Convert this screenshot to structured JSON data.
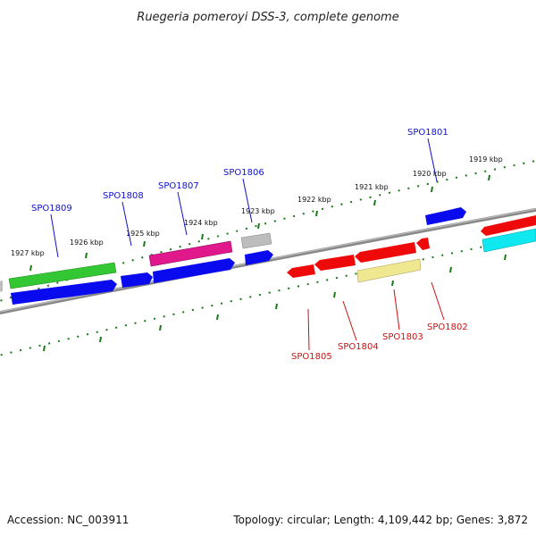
{
  "title": "Ruegeria pomeroyi DSS-3, complete genome",
  "footer": {
    "accession": "Accession: NC_003911",
    "stats": "Topology: circular; Length: 4,109,442 bp; Genes: 3,872"
  },
  "ticks": [
    "1927 kbp",
    "1926 kbp",
    "1925 kbp",
    "1924 kbp",
    "1923 kbp",
    "1922 kbp",
    "1921 kbp",
    "1920 kbp",
    "1919 kbp"
  ],
  "genes_forward_labels": [
    "SPO1809",
    "SPO1808",
    "SPO1807",
    "SPO1806",
    "SPO1801"
  ],
  "genes_reverse_labels": [
    "SPO1805",
    "SPO1804",
    "SPO1803",
    "SPO1802"
  ],
  "colors": {
    "forward_label": "#1010cc",
    "reverse_label": "#cc1010",
    "backbone": "#888888",
    "tick": "#1a7a1a",
    "blue": "#0a0aee",
    "green": "#33c833",
    "magenta": "#e0188c",
    "gray": "#b8b8b8",
    "red": "#ee0a0a",
    "yellow": "#f0e890",
    "cyan": "#10e8f0"
  }
}
